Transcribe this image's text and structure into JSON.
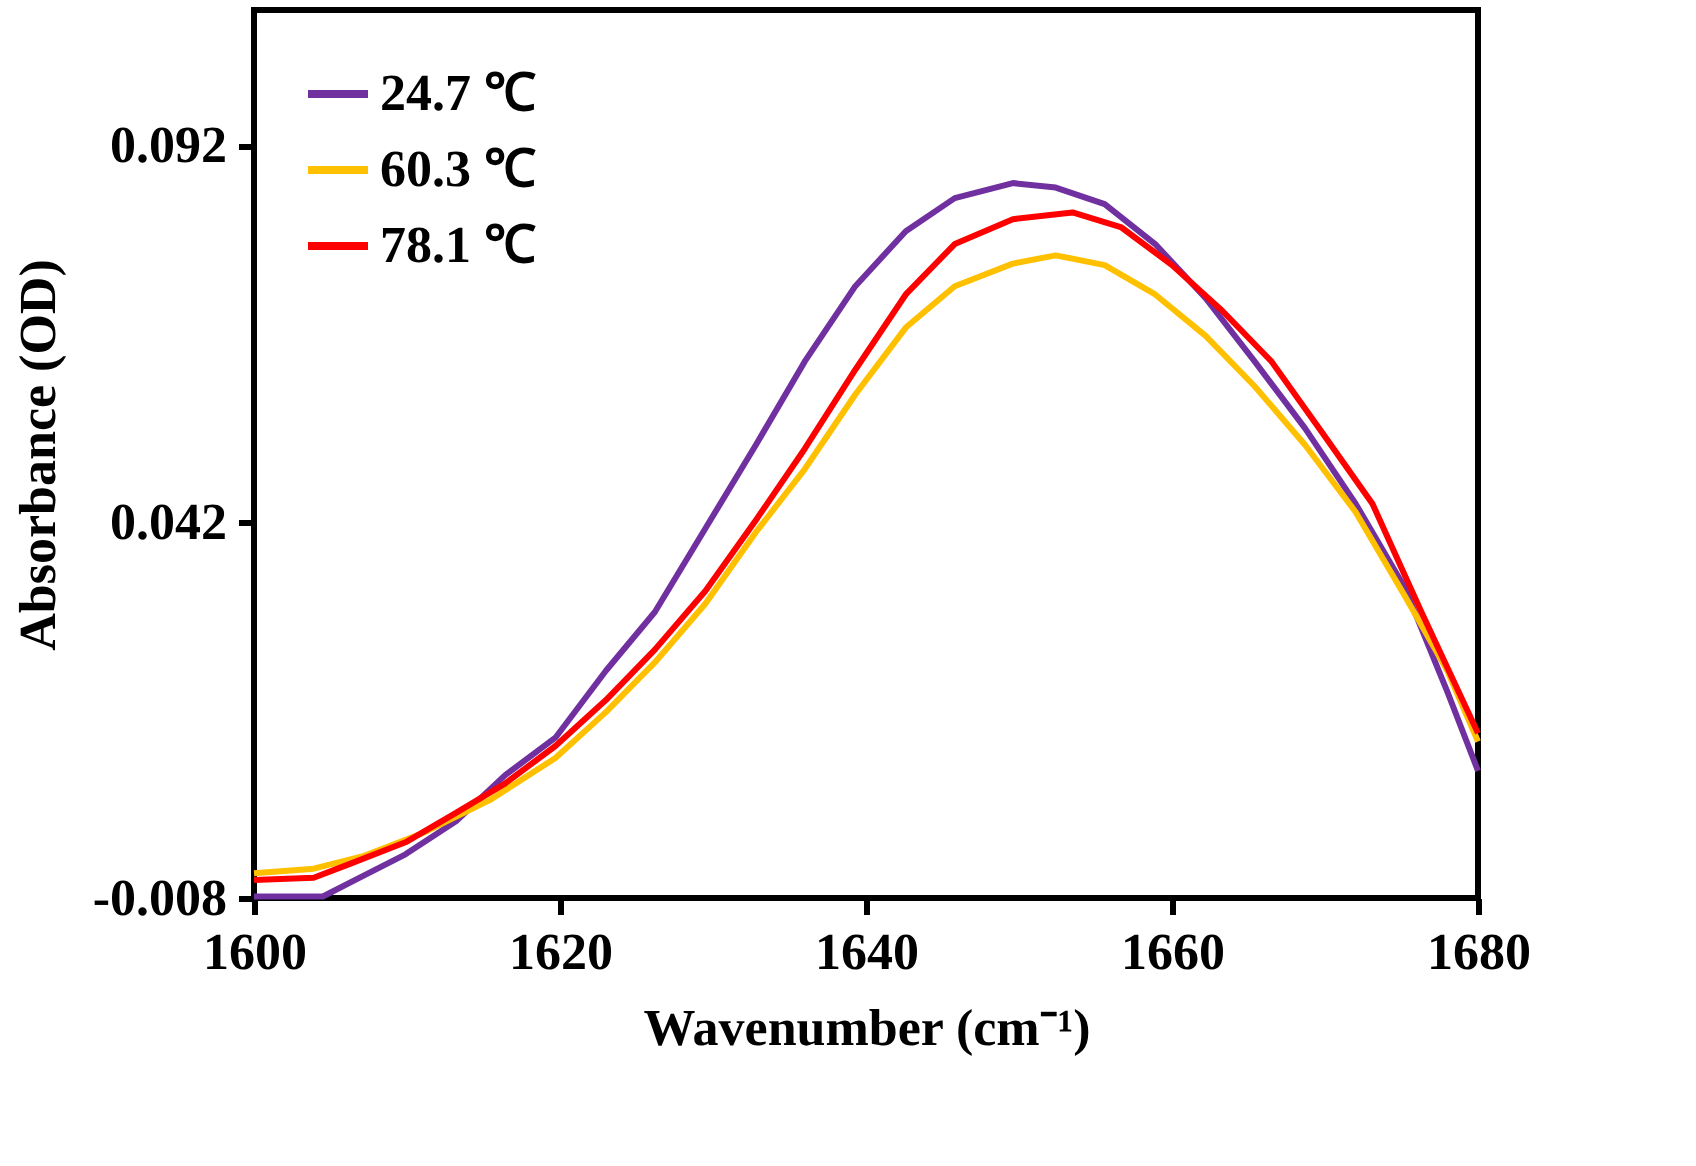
{
  "chart_data": {
    "type": "line",
    "xlabel": "Wavenumber (cm⁻¹)",
    "ylabel": "Absorbance (OD)",
    "xlim": [
      1600,
      1680
    ],
    "xticks": [
      1600,
      1620,
      1640,
      1660,
      1680
    ],
    "ylim": [
      -0.008,
      0.11
    ],
    "yticks": [
      -0.008,
      0.042,
      0.092
    ],
    "grid": false,
    "legend": "top left",
    "line_style": "solid",
    "marker": "none",
    "series": [
      {
        "name": "24.7 ℃",
        "color": "#7030a0",
        "x": [
          1600,
          1604.5,
          1607.2,
          1609.9,
          1613.2,
          1616.4,
          1619.7,
          1623.0,
          1626.2,
          1629.5,
          1632.8,
          1636.0,
          1639.3,
          1642.6,
          1645.8,
          1649.6,
          1652.4,
          1655.6,
          1658.9,
          1662.2,
          1665.4,
          1668.7,
          1672.0,
          1675.2,
          1678.0,
          1680
        ],
        "values": [
          -0.0078,
          -0.0078,
          -0.005,
          -0.0022,
          0.0022,
          0.0083,
          0.0133,
          0.0222,
          0.03,
          0.0411,
          0.0522,
          0.0633,
          0.0733,
          0.0806,
          0.085,
          0.087,
          0.0864,
          0.0842,
          0.0789,
          0.0717,
          0.0633,
          0.0544,
          0.0444,
          0.0333,
          0.0194,
          0.0089
        ]
      },
      {
        "name": "60.3 ℃",
        "color": "#ffc000",
        "x": [
          1600,
          1603.9,
          1607.2,
          1611.0,
          1615.4,
          1619.7,
          1623.0,
          1626.2,
          1629.5,
          1632.8,
          1636.0,
          1639.3,
          1642.6,
          1645.8,
          1649.6,
          1652.4,
          1655.6,
          1658.9,
          1662.2,
          1665.4,
          1668.7,
          1672.0,
          1675.2,
          1678.0,
          1680
        ],
        "values": [
          -0.0047,
          -0.0041,
          -0.0024,
          0.0006,
          0.005,
          0.0106,
          0.0167,
          0.0233,
          0.0311,
          0.0406,
          0.049,
          0.0589,
          0.0678,
          0.0733,
          0.0763,
          0.0774,
          0.0761,
          0.0722,
          0.0667,
          0.06,
          0.0522,
          0.0433,
          0.0322,
          0.0222,
          0.0128
        ]
      },
      {
        "name": "78.1 ℃",
        "color": "#ff0000",
        "x": [
          1600,
          1603.9,
          1606.1,
          1609.9,
          1613.2,
          1616.4,
          1619.7,
          1623.0,
          1626.2,
          1629.5,
          1632.8,
          1636.0,
          1639.3,
          1642.6,
          1645.8,
          1649.6,
          1653.5,
          1656.7,
          1660.0,
          1663.3,
          1666.5,
          1669.8,
          1673.1,
          1676.3,
          1680
        ],
        "values": [
          -0.0056,
          -0.0053,
          -0.0036,
          -0.0006,
          0.0033,
          0.0072,
          0.0122,
          0.0183,
          0.025,
          0.0328,
          0.0422,
          0.0517,
          0.0622,
          0.0722,
          0.0789,
          0.0822,
          0.0831,
          0.0811,
          0.0761,
          0.07,
          0.0633,
          0.0539,
          0.0444,
          0.03,
          0.0139
        ]
      }
    ]
  }
}
